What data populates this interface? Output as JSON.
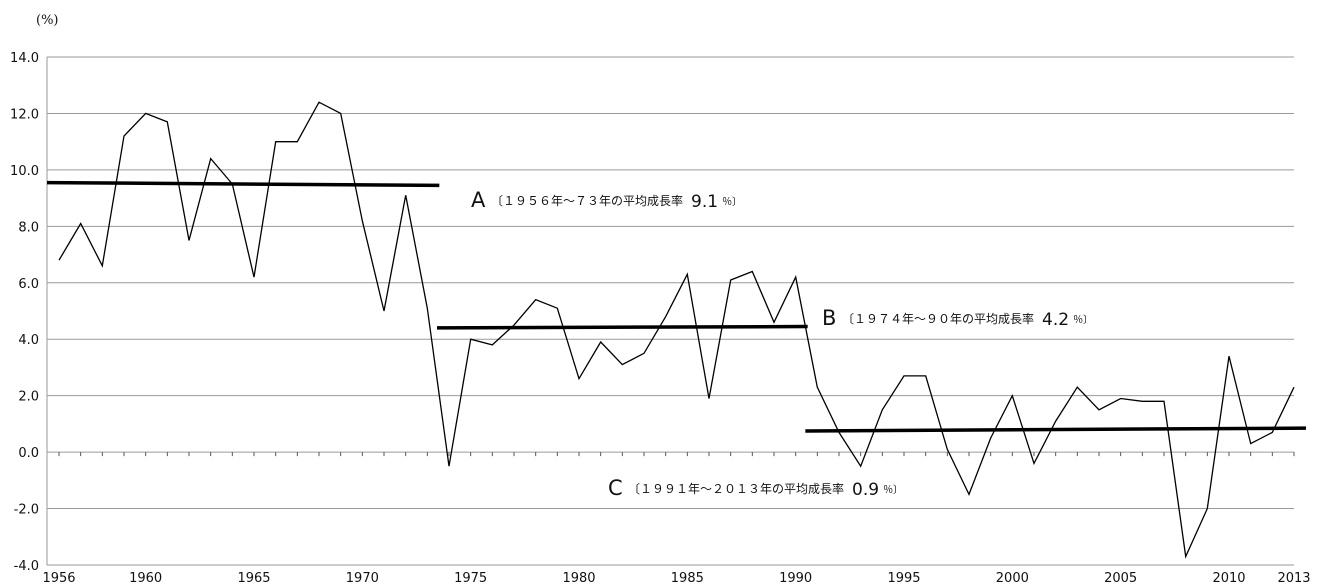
{
  "chart_data": {
    "type": "line",
    "unit_label": "(%)",
    "xlim": [
      1956,
      2013
    ],
    "ylim": [
      -4.0,
      14.0
    ],
    "y_ticks": [
      "14.0",
      "12.0",
      "10.0",
      "8.0",
      "6.0",
      "4.0",
      "2.0",
      "0.0",
      "-2.0",
      "-4.0"
    ],
    "y_tick_values": [
      14,
      12,
      10,
      8,
      6,
      4,
      2,
      0,
      -2,
      -4
    ],
    "x_tick_labels": [
      "1956",
      "1960",
      "1965",
      "1970",
      "1975",
      "1980",
      "1985",
      "1990",
      "1995",
      "2000",
      "2005",
      "2010",
      "2013"
    ],
    "x_tick_values": [
      1956,
      1960,
      1965,
      1970,
      1975,
      1980,
      1985,
      1990,
      1995,
      2000,
      2005,
      2010,
      2013
    ],
    "grid": true,
    "series": [
      {
        "x": [
          1956,
          1957,
          1958,
          1959,
          1960,
          1961,
          1962,
          1963,
          1964,
          1965,
          1966,
          1967,
          1968,
          1969,
          1970,
          1971,
          1972,
          1973,
          1974,
          1975,
          1976,
          1977,
          1978,
          1979,
          1980,
          1981,
          1982,
          1983,
          1984,
          1985,
          1986,
          1987,
          1988,
          1989,
          1990,
          1991,
          1992,
          1993,
          1994,
          1995,
          1996,
          1997,
          1998,
          1999,
          2000,
          2001,
          2002,
          2003,
          2004,
          2005,
          2006,
          2007,
          2008,
          2009,
          2010,
          2011,
          2012,
          2013
        ],
        "values": [
          6.8,
          8.1,
          6.6,
          11.2,
          12.0,
          11.7,
          7.5,
          10.4,
          9.5,
          6.2,
          11.0,
          11.0,
          12.4,
          12.0,
          8.2,
          5.0,
          9.1,
          5.1,
          -0.5,
          4.0,
          3.8,
          4.5,
          5.4,
          5.1,
          2.6,
          3.9,
          3.1,
          3.5,
          4.8,
          6.3,
          1.9,
          6.1,
          6.4,
          4.6,
          6.2,
          2.3,
          0.7,
          -0.5,
          1.5,
          2.7,
          2.7,
          0.1,
          -1.5,
          0.5,
          2.0,
          -0.4,
          1.1,
          2.3,
          1.5,
          1.9,
          1.8,
          1.8,
          -3.7,
          -2.0,
          3.4,
          0.3,
          0.7,
          2.3
        ],
        "color": "#000000"
      }
    ],
    "averages": [
      {
        "letter": "A",
        "text": "〔１９５６年〜７３年の平均成長率",
        "value": "9.1",
        "pct": "％〕",
        "x_start": 1956,
        "x_end": 1973,
        "y_start": 9.55,
        "y_end": 9.45
      },
      {
        "letter": "B",
        "text": "〔１９７４年〜９０年の平均成長率",
        "value": "4.2",
        "pct": "％〕",
        "x_start": 1974,
        "x_end": 1990,
        "y_start": 4.4,
        "y_end": 4.45
      },
      {
        "letter": "C",
        "text": "〔１９９１年〜２０１３年の平均成長率",
        "value": "0.9",
        "pct": "％〕",
        "x_start": 1991,
        "x_end": 2013,
        "y_start": 0.75,
        "y_end": 0.85
      }
    ]
  }
}
